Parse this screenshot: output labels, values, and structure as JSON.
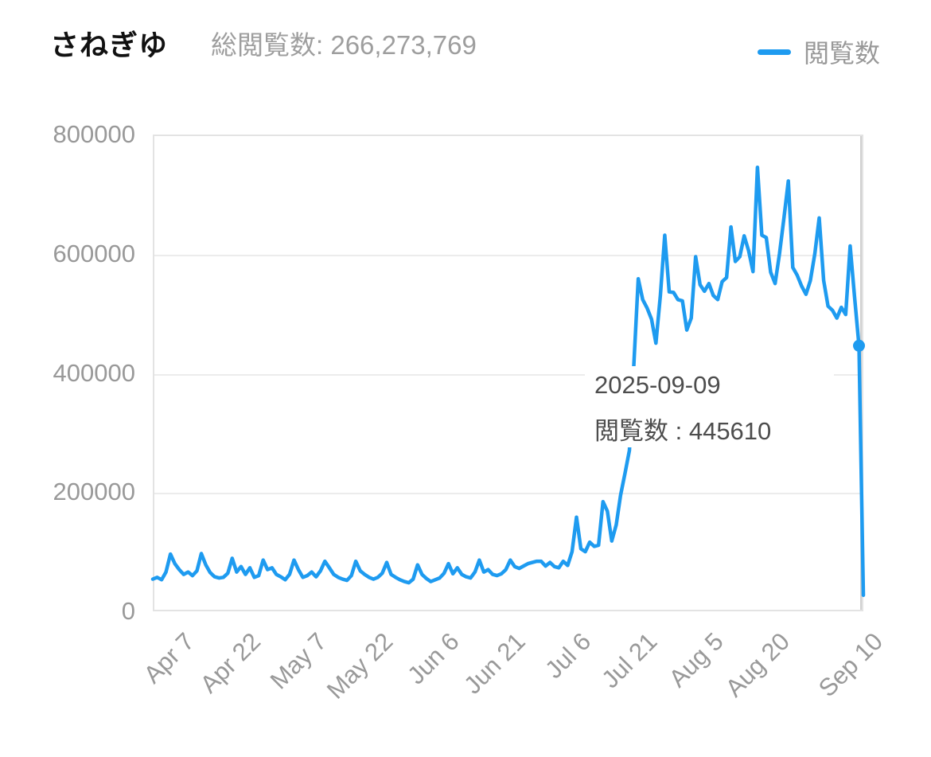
{
  "header": {
    "title": "さねぎゆ",
    "total_views_label": "総閲覧数: 266,273,769",
    "legend": {
      "label": "閲覧数",
      "color": "#1e9bf0"
    }
  },
  "tooltip": {
    "date": "2025-09-09",
    "value_line": "閲覧数 : 445610"
  },
  "colors": {
    "line": "#1e9bf0",
    "axis_text": "#999999",
    "grid": "#ececec",
    "crosshair": "#d0d0d0",
    "tooltip_text": "#4d4d4d"
  },
  "chart_data": {
    "type": "line",
    "title": "さねぎゆ",
    "legend_position": "top-right",
    "grid": true,
    "ylabel": "",
    "xlabel": "",
    "ylim": [
      0,
      800000
    ],
    "y_ticks": [
      0,
      200000,
      400000,
      600000,
      800000
    ],
    "x_start_date": "2025-04-02",
    "x_end_date": "2025-09-10",
    "x_frequency": "daily",
    "x_ticks": [
      {
        "label": "Apr 7",
        "index": 5
      },
      {
        "label": "Apr 22",
        "index": 20
      },
      {
        "label": "May 7",
        "index": 35
      },
      {
        "label": "May 22",
        "index": 50
      },
      {
        "label": "Jun 6",
        "index": 65
      },
      {
        "label": "Jun 21",
        "index": 80
      },
      {
        "label": "Jul 6",
        "index": 95
      },
      {
        "label": "Jul 21",
        "index": 110
      },
      {
        "label": "Aug 5",
        "index": 125
      },
      {
        "label": "Aug 20",
        "index": 140
      },
      {
        "label": "Sep 10",
        "index": 161
      }
    ],
    "highlight": {
      "index": 160,
      "date": "2025-09-09",
      "value": 445610
    },
    "series": [
      {
        "name": "閲覧数",
        "color": "#1e9bf0",
        "values": [
          54000,
          57000,
          53000,
          66000,
          96000,
          80000,
          70000,
          62000,
          66000,
          60000,
          68000,
          97000,
          78000,
          65000,
          58000,
          56000,
          57000,
          64000,
          89000,
          66000,
          75000,
          62000,
          73000,
          57000,
          60000,
          86000,
          70000,
          73000,
          62000,
          58000,
          53000,
          62000,
          86000,
          70000,
          57000,
          60000,
          66000,
          58000,
          68000,
          84000,
          73000,
          62000,
          57000,
          54000,
          52000,
          60000,
          84000,
          68000,
          62000,
          57000,
          54000,
          57000,
          64000,
          82000,
          62000,
          57000,
          53000,
          50000,
          48000,
          54000,
          78000,
          62000,
          55000,
          50000,
          53000,
          56000,
          64000,
          80000,
          63000,
          73000,
          62000,
          58000,
          56000,
          66000,
          86000,
          66000,
          70000,
          62000,
          60000,
          63000,
          70000,
          86000,
          75000,
          72000,
          76000,
          80000,
          82000,
          84000,
          84000,
          76000,
          82000,
          75000,
          73000,
          84000,
          77000,
          100000,
          158000,
          105000,
          100000,
          116000,
          109000,
          111000,
          184000,
          168000,
          118000,
          145000,
          195000,
          232000,
          270000,
          415000,
          558000,
          523000,
          509000,
          490000,
          450000,
          530000,
          631000,
          536000,
          535000,
          523000,
          521000,
          472000,
          492000,
          595000,
          548000,
          537000,
          550000,
          530000,
          523000,
          553000,
          560000,
          645000,
          587000,
          595000,
          630000,
          605000,
          570000,
          745000,
          631000,
          627000,
          569000,
          550000,
          600000,
          660000,
          722000,
          577000,
          564000,
          546000,
          532000,
          555000,
          600000,
          660000,
          555000,
          512000,
          505000,
          492000,
          510000,
          498000,
          613000,
          528000,
          445610,
          27000
        ]
      }
    ]
  }
}
